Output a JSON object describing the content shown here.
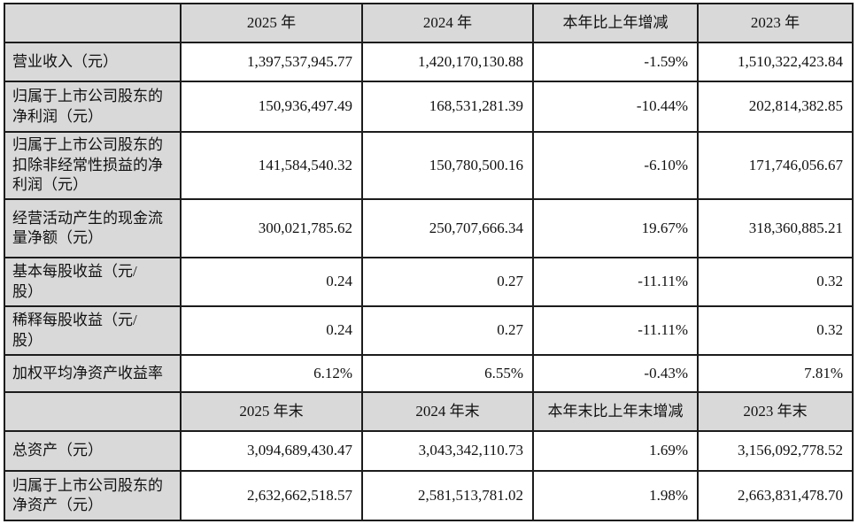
{
  "colors": {
    "header_and_label_bg": "#d9d9d9",
    "border": "#1c1c1c",
    "text": "#111111",
    "page_bg": "#ffffff"
  },
  "table": {
    "section1": {
      "header": {
        "corner": "",
        "columns": [
          "2025 年",
          "2024 年",
          "本年比上年增减",
          "2023 年"
        ]
      },
      "rows": [
        {
          "label": "营业收入（元）",
          "values": [
            "1,397,537,945.77",
            "1,420,170,130.88",
            "-1.59%",
            "1,510,322,423.84"
          ]
        },
        {
          "label": "归属于上市公司股东的\n净利润（元）",
          "values": [
            "150,936,497.49",
            "168,531,281.39",
            "-10.44%",
            "202,814,382.85"
          ]
        },
        {
          "label": "归属于上市公司股东的\n扣除非经常性损益的净\n利润（元）",
          "values": [
            "141,584,540.32",
            "150,780,500.16",
            "-6.10%",
            "171,746,056.67"
          ]
        },
        {
          "label": "经营活动产生的现金流\n量净额（元）",
          "values": [
            "300,021,785.62",
            "250,707,666.34",
            "19.67%",
            "318,360,885.21"
          ]
        },
        {
          "label": "基本每股收益（元/\n股）",
          "values": [
            "0.24",
            "0.27",
            "-11.11%",
            "0.32"
          ]
        },
        {
          "label": "稀释每股收益（元/\n股）",
          "values": [
            "0.24",
            "0.27",
            "-11.11%",
            "0.32"
          ]
        },
        {
          "label": "加权平均净资产收益率",
          "values": [
            "6.12%",
            "6.55%",
            "-0.43%",
            "7.81%"
          ]
        }
      ]
    },
    "section2": {
      "header": {
        "corner": "",
        "columns": [
          "2025 年末",
          "2024 年末",
          "本年末比上年末增减",
          "2023 年末"
        ]
      },
      "rows": [
        {
          "label": "总资产（元）",
          "values": [
            "3,094,689,430.47",
            "3,043,342,110.73",
            "1.69%",
            "3,156,092,778.52"
          ]
        },
        {
          "label": "归属于上市公司股东的\n净资产（元）",
          "values": [
            "2,632,662,518.57",
            "2,581,513,781.02",
            "1.98%",
            "2,663,831,478.70"
          ]
        }
      ]
    }
  }
}
